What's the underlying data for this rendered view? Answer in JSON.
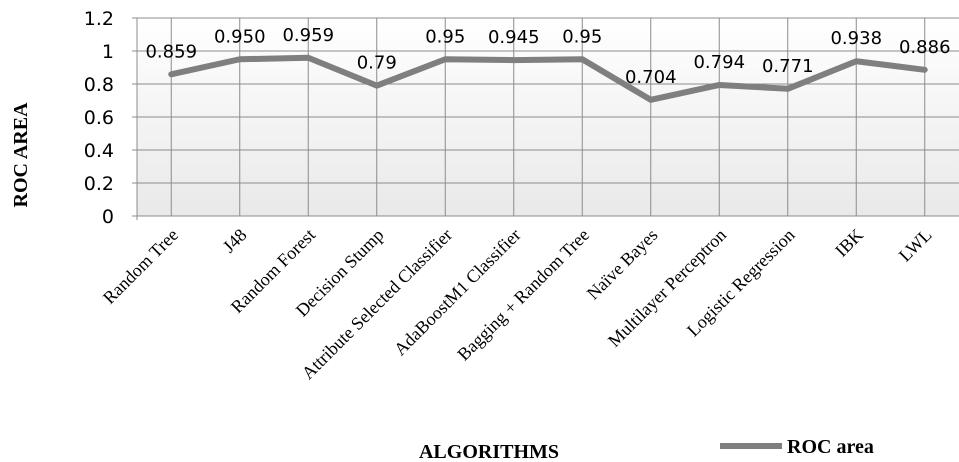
{
  "chart_data": {
    "type": "line",
    "categories": [
      "Random Tree",
      "J48",
      "Random Forest",
      "Decision Stump",
      "Attribute Selected Classifier",
      "AdaBoostM1 Classifier",
      "Bagging + Random Tree",
      "Naïve Bayes",
      "Multilayer Perceptron",
      "Logistic Regression",
      "IBK",
      "LWL"
    ],
    "series": [
      {
        "name": "ROC area",
        "values": [
          0.859,
          0.95,
          0.959,
          0.79,
          0.95,
          0.945,
          0.95,
          0.704,
          0.794,
          0.771,
          0.938,
          0.886
        ],
        "labels": [
          "0.859",
          "0.950",
          "0.959",
          "0.79",
          "0.95",
          "0.945",
          "0.95",
          "0.704",
          "0.794",
          "0.771",
          "0.938",
          "0.886"
        ],
        "color": "#7f7f7f"
      }
    ],
    "xlabel": "ALGORITHMS",
    "ylabel": "ROC AREA",
    "yticks": [
      "0",
      "0.2",
      "0.4",
      "0.6",
      "0.8",
      "1",
      "1.2"
    ],
    "ylim": [
      0,
      1.2
    ],
    "grid": true,
    "legend_position": "bottom-right",
    "plot_background": "#f0f0f0",
    "grid_color": "#8c8c8c"
  }
}
